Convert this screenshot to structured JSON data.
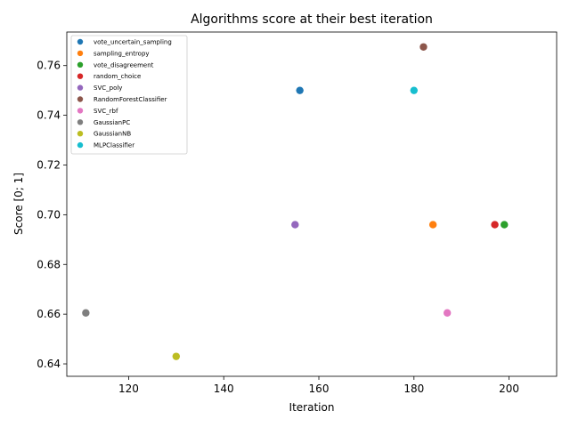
{
  "chart_data": {
    "type": "scatter",
    "title": "Algorithms score at their best iteration",
    "xlabel": "Iteration",
    "ylabel": "Score [0; 1]",
    "xlim": [
      107,
      210
    ],
    "ylim": [
      0.635,
      0.7735
    ],
    "xticks": [
      120,
      140,
      160,
      180,
      200
    ],
    "yticks": [
      0.64,
      0.66,
      0.68,
      0.7,
      0.72,
      0.74,
      0.76
    ],
    "ytick_labels": [
      "0.64",
      "0.66",
      "0.68",
      "0.70",
      "0.72",
      "0.74",
      "0.76"
    ],
    "grid": false,
    "legend_position": "top-left",
    "series": [
      {
        "name": "vote_uncertain_sampling",
        "color": "#1f77b4",
        "x": 156,
        "y": 0.75
      },
      {
        "name": "sampling_entropy",
        "color": "#ff7f0e",
        "x": 184,
        "y": 0.696
      },
      {
        "name": "vote_disagreement",
        "color": "#2ca02c",
        "x": 199,
        "y": 0.696
      },
      {
        "name": "random_choice",
        "color": "#d62728",
        "x": 197,
        "y": 0.696
      },
      {
        "name": "SVC_poly",
        "color": "#9467bd",
        "x": 155,
        "y": 0.696
      },
      {
        "name": "RandomForestClassifier",
        "color": "#8c564b",
        "x": 182,
        "y": 0.7675
      },
      {
        "name": "SVC_rbf",
        "color": "#e377c2",
        "x": 187,
        "y": 0.6605
      },
      {
        "name": "GaussianPC",
        "color": "#7f7f7f",
        "x": 111,
        "y": 0.6605
      },
      {
        "name": "GaussianNB",
        "color": "#bcbd22",
        "x": 130,
        "y": 0.643
      },
      {
        "name": "MLPClassifier",
        "color": "#17becf",
        "x": 180,
        "y": 0.75
      }
    ]
  }
}
